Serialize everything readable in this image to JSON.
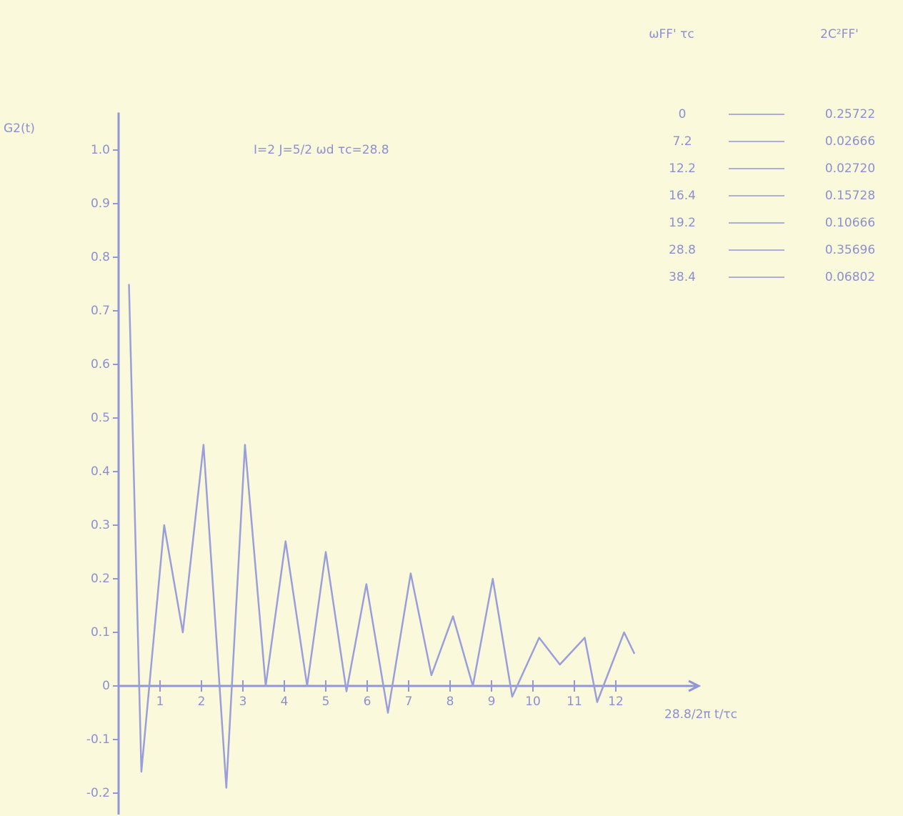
{
  "chart_data": {
    "type": "line",
    "y_label": "G2(t)",
    "annotation": "I=2  J=5/2  ωd τc=28.8",
    "x_label": "28.8/2π  t/τc",
    "x": [
      0.25,
      0.55,
      1.1,
      1.55,
      2.05,
      2.6,
      3.05,
      3.55,
      4.03,
      4.55,
      5.0,
      5.5,
      5.98,
      6.5,
      7.05,
      7.55,
      8.07,
      8.55,
      9.03,
      9.5,
      10.15,
      10.65,
      11.25,
      11.55,
      12.2,
      12.45
    ],
    "values": [
      0.75,
      -0.16,
      0.3,
      0.1,
      0.45,
      -0.19,
      0.45,
      0.0,
      0.27,
      0.0,
      0.25,
      -0.01,
      0.19,
      -0.05,
      0.21,
      0.02,
      0.13,
      0.0,
      0.2,
      -0.02,
      0.09,
      0.04,
      0.09,
      -0.03,
      0.1,
      0.06
    ],
    "color": "#9a9edb",
    "xlim": [
      0,
      14
    ],
    "xticks": [
      1,
      2,
      3,
      4,
      5,
      6,
      7,
      8,
      9,
      10,
      11,
      12
    ],
    "ylim": [
      -0.24,
      1.07
    ],
    "yticks": [
      {
        "value": 1,
        "label": "1.0"
      },
      0.9,
      0.8,
      0.7,
      0.6,
      0.5,
      0.4,
      0.3,
      0.2,
      0.1,
      0,
      -0.1,
      -0.2
    ],
    "table": {
      "columns": [
        "ωFF' τc",
        "2C²FF'"
      ],
      "rows": [
        [
          "0",
          "0.25722"
        ],
        [
          "7.2",
          "0.02666"
        ],
        [
          "12.2",
          "0.02720"
        ],
        [
          "16.4",
          "0.15728"
        ],
        [
          "19.2",
          "0.10666"
        ],
        [
          "28.8",
          "0.35696"
        ],
        [
          "38.4",
          "0.06802"
        ]
      ]
    }
  }
}
